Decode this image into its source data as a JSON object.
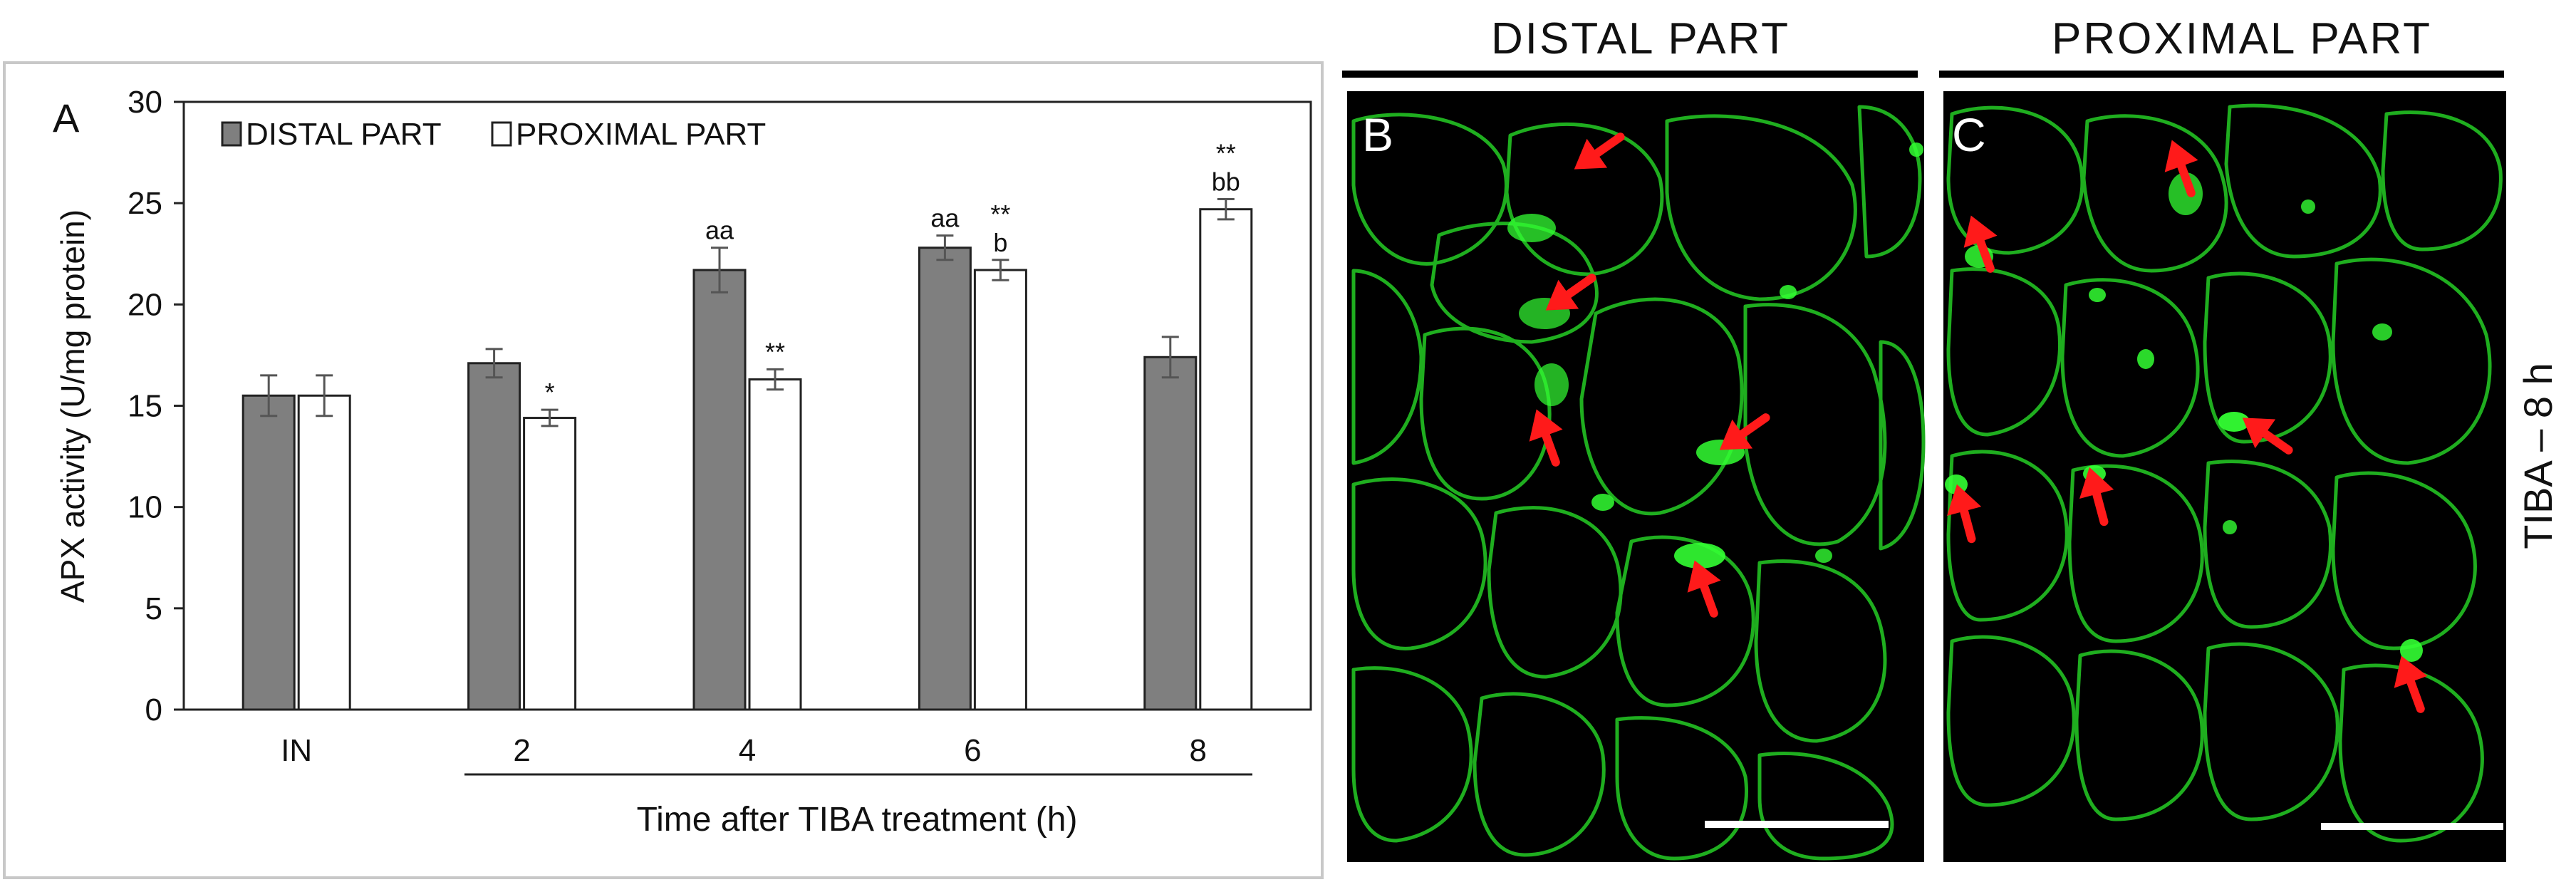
{
  "panel_a": {
    "letter": "A",
    "legend_distal": "DISTAL PART",
    "legend_proximal": "PROXIMAL PART"
  },
  "chart_data": {
    "type": "bar",
    "categories": [
      "IN",
      "2",
      "4",
      "6",
      "8"
    ],
    "series": [
      {
        "name": "DISTAL PART",
        "color": "#7f7f7f",
        "values": [
          15.5,
          17.1,
          21.7,
          22.8,
          17.4
        ],
        "errors": [
          1.0,
          0.7,
          1.1,
          0.6,
          1.0
        ],
        "labels": [
          "",
          "",
          "aa",
          "aa",
          ""
        ]
      },
      {
        "name": "PROXIMAL PART",
        "color": "#ffffff",
        "values": [
          15.5,
          14.4,
          16.3,
          21.7,
          24.7
        ],
        "errors": [
          1.0,
          0.4,
          0.5,
          0.5,
          0.5
        ],
        "labels": [
          "",
          "*",
          "**",
          "**\nb",
          "**\nbb"
        ]
      }
    ],
    "title": "",
    "xlabel": "Time after TIBA treatment (h)",
    "ylabel": "APX activity (U/mg protein)",
    "ylim": [
      0,
      30
    ],
    "yticks": [
      "0",
      "5",
      "10",
      "15",
      "20",
      "25",
      "30"
    ],
    "grid": false,
    "legend": "top-left"
  },
  "micrographs": {
    "distal_header": "DISTAL PART",
    "proximal_header": "PROXIMAL PART",
    "panel_b_letter": "B",
    "panel_c_letter": "C",
    "side_label": "TIBA – 8 h",
    "signal_color": "#2ee62e",
    "arrow_color": "#ff1a1a"
  }
}
